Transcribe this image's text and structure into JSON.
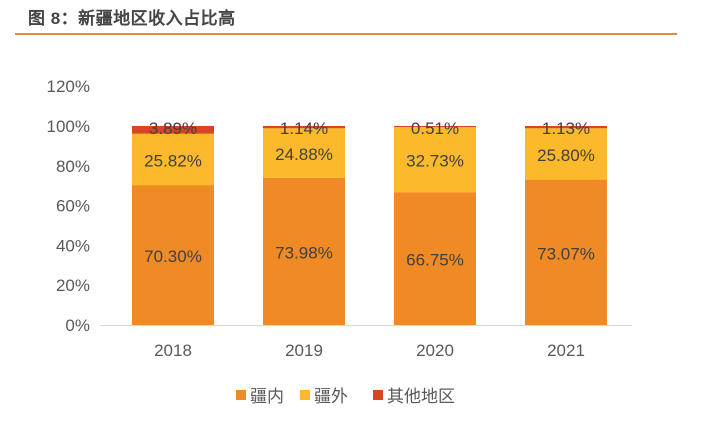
{
  "title": "图 8：新疆地区收入占比高",
  "chart_data": {
    "type": "bar",
    "stacked": true,
    "title": "图 8：新疆地区收入占比高",
    "categories": [
      "2018",
      "2019",
      "2020",
      "2021"
    ],
    "series": [
      {
        "name": "疆内",
        "color": "#F08A24",
        "values": [
          70.3,
          73.98,
          66.75,
          73.07
        ],
        "labels": [
          "70.30%",
          "73.98%",
          "66.75%",
          "73.07%"
        ]
      },
      {
        "name": "疆外",
        "color": "#FBB92B",
        "values": [
          25.82,
          24.88,
          32.73,
          25.8
        ],
        "labels": [
          "25.82%",
          "24.88%",
          "32.73%",
          "25.80%"
        ]
      },
      {
        "name": "其他地区",
        "color": "#D9451F",
        "values": [
          3.89,
          1.14,
          0.51,
          1.13
        ],
        "labels": [
          "3.89%",
          "1.14%",
          "0.51%",
          "1.13%"
        ]
      }
    ],
    "ylim": [
      0,
      120
    ],
    "yticks": [
      "0%",
      "20%",
      "40%",
      "60%",
      "80%",
      "100%",
      "120%"
    ],
    "grid": false,
    "legend": "bottom"
  }
}
